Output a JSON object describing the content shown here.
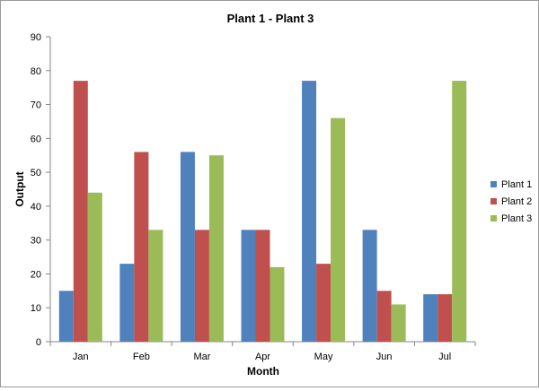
{
  "chart_data": {
    "type": "bar",
    "title": "Plant 1 - Plant 3",
    "xlabel": "Month",
    "ylabel": "Output",
    "categories": [
      "Jan",
      "Feb",
      "Mar",
      "Apr",
      "May",
      "Jun",
      "Jul"
    ],
    "series": [
      {
        "name": "Plant 1",
        "color": "#4f81bd",
        "values": [
          15,
          23,
          56,
          33,
          77,
          33,
          14
        ]
      },
      {
        "name": "Plant 2",
        "color": "#c0504d",
        "values": [
          77,
          56,
          33,
          33,
          23,
          15,
          14
        ]
      },
      {
        "name": "Plant 3",
        "color": "#9bbb59",
        "values": [
          44,
          33,
          55,
          22,
          66,
          11,
          77
        ]
      }
    ],
    "ylim": [
      0,
      90
    ],
    "yticks": [
      0,
      10,
      20,
      30,
      40,
      50,
      60,
      70,
      80,
      90
    ],
    "grid": false,
    "legend_position": "right"
  }
}
